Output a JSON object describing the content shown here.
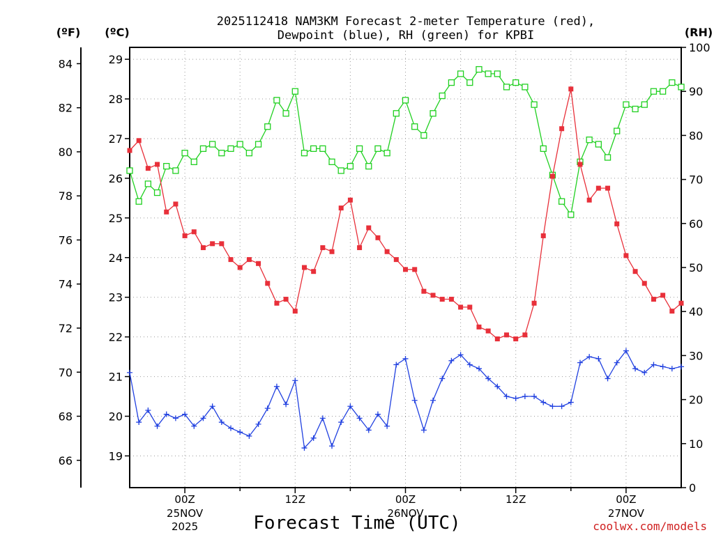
{
  "colors": {
    "temperature": "#e8303a",
    "dewpoint": "#2040e0",
    "rh": "#20d020",
    "credit": "#d02020",
    "grid": "#999999"
  },
  "chart_data": {
    "type": "line",
    "title_line1": "2025112418 NAM3KM Forecast 2-meter Temperature (red),",
    "title_line2": "Dewpoint (blue), RH (green) for KPBI",
    "xlabel": "Forecast Time (UTC)",
    "credit": "coolwx.com/models",
    "left_unit_f": "(ºF)",
    "left_unit_c": "(ºC)",
    "right_unit": "(RH)",
    "fahrenheit_ticks": [
      "66",
      "68",
      "70",
      "72",
      "74",
      "76",
      "78",
      "80",
      "82",
      "84"
    ],
    "celsius_ticks": [
      "19",
      "20",
      "21",
      "22",
      "23",
      "24",
      "25",
      "26",
      "27",
      "28",
      "29"
    ],
    "rh_ticks": [
      "0",
      "10",
      "20",
      "30",
      "40",
      "50",
      "60",
      "70",
      "80",
      "90",
      "100"
    ],
    "celsius_range": [
      18.2,
      29.3
    ],
    "rh_range": [
      0,
      100
    ],
    "hour_range": [
      18,
      78
    ],
    "x_ticks": [
      {
        "hour": 24,
        "line1": "00Z",
        "line2": "25NOV",
        "line3": "2025"
      },
      {
        "hour": 36,
        "line1": "12Z",
        "line2": "",
        "line3": ""
      },
      {
        "hour": 48,
        "line1": "00Z",
        "line2": "26NOV",
        "line3": ""
      },
      {
        "hour": 60,
        "line1": "12Z",
        "line2": "",
        "line3": ""
      },
      {
        "hour": 72,
        "line1": "00Z",
        "line2": "27NOV",
        "line3": ""
      }
    ],
    "series": [
      {
        "name": "Temperature",
        "units": "C",
        "start_hour": 18,
        "step_hours": 1,
        "values": [
          26.7,
          26.95,
          26.25,
          26.35,
          25.15,
          25.35,
          24.55,
          24.65,
          24.25,
          24.35,
          24.35,
          23.95,
          23.75,
          23.95,
          23.85,
          23.35,
          22.85,
          22.95,
          22.65,
          23.75,
          23.65,
          24.25,
          24.15,
          25.25,
          25.45,
          24.25,
          24.75,
          24.5,
          24.15,
          23.95,
          23.7,
          23.7,
          23.15,
          23.05,
          22.95,
          22.95,
          22.75,
          22.75,
          22.25,
          22.15,
          21.95,
          22.05,
          21.95,
          22.05,
          22.85,
          24.55,
          26.05,
          27.25,
          28.25,
          26.35,
          25.45,
          25.75,
          25.75,
          24.85,
          24.05,
          23.65,
          23.35,
          22.95,
          23.05,
          22.65,
          22.85
        ]
      },
      {
        "name": "Dewpoint",
        "units": "C",
        "start_hour": 18,
        "step_hours": 1,
        "values": [
          21.1,
          19.85,
          20.15,
          19.75,
          20.05,
          19.95,
          20.05,
          19.75,
          19.95,
          20.25,
          19.85,
          19.7,
          19.6,
          19.5,
          19.8,
          20.2,
          20.75,
          20.3,
          20.9,
          19.2,
          19.45,
          19.95,
          19.25,
          19.85,
          20.25,
          19.95,
          19.65,
          20.05,
          19.75,
          21.3,
          21.45,
          20.4,
          19.65,
          20.4,
          20.95,
          21.4,
          21.55,
          21.3,
          21.2,
          20.95,
          20.75,
          20.5,
          20.45,
          20.5,
          20.5,
          20.35,
          20.25,
          20.25,
          20.35,
          21.35,
          21.5,
          21.45,
          20.95,
          21.35,
          21.65,
          21.2,
          21.1,
          21.3,
          21.25,
          21.2,
          21.25
        ]
      },
      {
        "name": "RH",
        "units": "%",
        "start_hour": 18,
        "step_hours": 1,
        "values": [
          72,
          65,
          69,
          67,
          73,
          72,
          76,
          74,
          77,
          78,
          76,
          77,
          78,
          76,
          78,
          82,
          88,
          85,
          90,
          76,
          77,
          77,
          74,
          72,
          73,
          77,
          73,
          77,
          76,
          85,
          88,
          82,
          80,
          85,
          89,
          92,
          94,
          92,
          95,
          94,
          94,
          91,
          92,
          91,
          87,
          77,
          71,
          65,
          62,
          74,
          79,
          78,
          75,
          81,
          87,
          86,
          87,
          90,
          90,
          92,
          91
        ]
      }
    ]
  }
}
